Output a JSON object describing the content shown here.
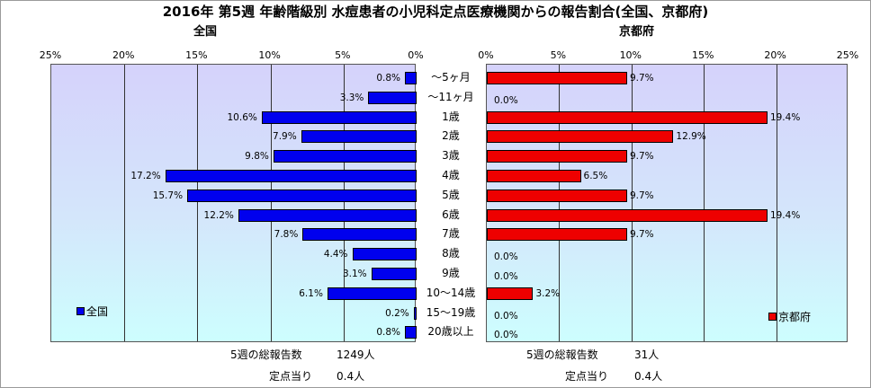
{
  "title": "2016年 第5週 年齢階級別 水痘患者の小児科定点医療機関からの報告割合(全国、京都府)",
  "colors": {
    "national": "#0000ee",
    "kyoto": "#ee0000"
  },
  "chart_data": [
    {
      "type": "bar",
      "orientation": "horizontal-reversed",
      "title": "全国",
      "categories": [
        "～5ヶ月",
        "～11ヶ月",
        "1歳",
        "2歳",
        "3歳",
        "4歳",
        "5歳",
        "6歳",
        "7歳",
        "8歳",
        "9歳",
        "10～14歳",
        "15～19歳",
        "20歳以上"
      ],
      "series": [
        {
          "name": "全国",
          "values": [
            0.8,
            3.3,
            10.6,
            7.9,
            9.8,
            17.2,
            15.7,
            12.2,
            7.8,
            4.4,
            3.1,
            6.1,
            0.2,
            0.8
          ]
        }
      ],
      "value_labels": [
        "0.8%",
        "3.3%",
        "10.6%",
        "7.9%",
        "9.8%",
        "17.2%",
        "15.7%",
        "12.2%",
        "7.8%",
        "4.4%",
        "3.1%",
        "6.1%",
        "0.2%",
        "0.8%"
      ],
      "ticks": [
        "25%",
        "20%",
        "15%",
        "10%",
        "5%",
        "0%"
      ],
      "xlim": [
        0,
        25
      ],
      "legend": "bottom-left",
      "grid": true
    },
    {
      "type": "bar",
      "orientation": "horizontal",
      "title": "京都府",
      "categories": [
        "～5ヶ月",
        "～11ヶ月",
        "1歳",
        "2歳",
        "3歳",
        "4歳",
        "5歳",
        "6歳",
        "7歳",
        "8歳",
        "9歳",
        "10～14歳",
        "15～19歳",
        "20歳以上"
      ],
      "series": [
        {
          "name": "京都府",
          "values": [
            9.7,
            0.0,
            19.4,
            12.9,
            9.7,
            6.5,
            9.7,
            19.4,
            9.7,
            0.0,
            0.0,
            3.2,
            0.0,
            0.0
          ]
        }
      ],
      "value_labels": [
        "9.7%",
        "0.0%",
        "19.4%",
        "12.9%",
        "9.7%",
        "6.5%",
        "9.7%",
        "19.4%",
        "9.7%",
        "0.0%",
        "0.0%",
        "3.2%",
        "0.0%",
        "0.0%"
      ],
      "ticks": [
        "0%",
        "5%",
        "10%",
        "15%",
        "20%",
        "25%"
      ],
      "xlim": [
        0,
        25
      ],
      "legend": "bottom-right",
      "grid": true
    }
  ],
  "footer": {
    "national_total_label": "5週の総報告数",
    "national_total_value": "1249人",
    "national_per_label": "定点当り",
    "national_per_value": "0.4人",
    "kyoto_total_label": "5週の総報告数",
    "kyoto_total_value": "31人",
    "kyoto_per_label": "定点当り",
    "kyoto_per_value": "0.4人"
  }
}
